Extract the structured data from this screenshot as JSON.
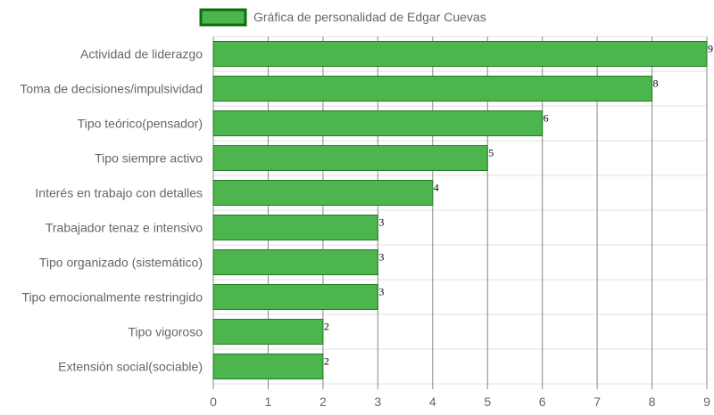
{
  "chart_data": {
    "type": "bar",
    "orientation": "horizontal",
    "legend": {
      "label": "Gráfica de personalidad de Edgar Cuevas",
      "position": "top"
    },
    "categories": [
      "Actividad de liderazgo",
      "Toma de decisiones/impulsividad",
      "Tipo teórico(pensador)",
      "Tipo siempre activo",
      "Interés en trabajo con detalles",
      "Trabajador tenaz e intensivo",
      "Tipo organizado (sistemático)",
      "Tipo emocionalmente restringido",
      "Tipo vigoroso",
      "Extensión social(sociable)"
    ],
    "values": [
      9,
      8,
      6,
      5,
      4,
      3,
      3,
      3,
      2,
      2
    ],
    "xlim": [
      0,
      9
    ],
    "xticks": [
      0,
      1,
      2,
      3,
      4,
      5,
      6,
      7,
      8,
      9
    ],
    "grid": true,
    "data_labels": true,
    "colors": {
      "bar_fill": "#4db54d",
      "bar_stroke": "#1f7a1f",
      "legend_fill": "#4db54d",
      "legend_stroke": "#0a6e0a",
      "grid_vertical": "#888888",
      "grid_horizontal": "#e0e0e0"
    }
  }
}
